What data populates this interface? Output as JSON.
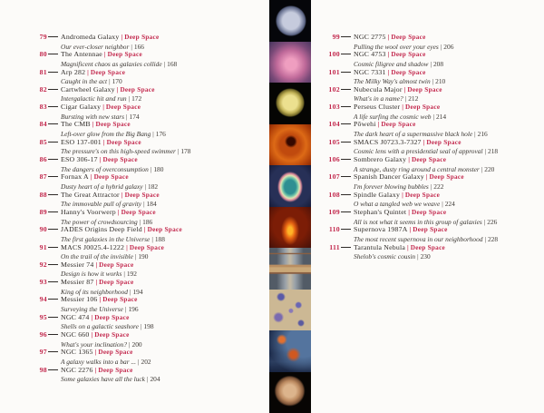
{
  "page": {
    "background": "#fcfbf9",
    "accent_red": "#c2274c",
    "ink": "#2e2a27"
  },
  "toc": {
    "separator": "|",
    "left": [
      {
        "num": "79",
        "title": "Andromeda Galaxy",
        "tag": "Deep Space",
        "subtitle": "Our ever-closer neighbor",
        "page": "166"
      },
      {
        "num": "80",
        "title": "The Antennae",
        "tag": "Deep Space",
        "subtitle": "Magnificent chaos as galaxies collide",
        "page": "168"
      },
      {
        "num": "81",
        "title": "Arp 282",
        "tag": "Deep Space",
        "subtitle": "Caught in the act",
        "page": "170"
      },
      {
        "num": "82",
        "title": "Cartwheel Galaxy",
        "tag": "Deep Space",
        "subtitle": "Intergalactic hit and run",
        "page": "172"
      },
      {
        "num": "83",
        "title": "Cigar Galaxy",
        "tag": "Deep Space",
        "subtitle": "Bursting with new stars",
        "page": "174"
      },
      {
        "num": "84",
        "title": "The CMB",
        "tag": "Deep Space",
        "subtitle": "Left-over glow from the Big Bang",
        "page": "176"
      },
      {
        "num": "85",
        "title": "ESO 137-001",
        "tag": "Deep Space",
        "subtitle": "The pressure's on this high-speed swimmer",
        "page": "178"
      },
      {
        "num": "86",
        "title": "ESO 306-17",
        "tag": "Deep Space",
        "subtitle": "The dangers of overconsumption",
        "page": "180"
      },
      {
        "num": "87",
        "title": "Fornax A",
        "tag": "Deep Space",
        "subtitle": "Dusty heart of a hybrid galaxy",
        "page": "182"
      },
      {
        "num": "88",
        "title": "The Great Attractor",
        "tag": "Deep Space",
        "subtitle": "The immovable pull of gravity",
        "page": "184"
      },
      {
        "num": "89",
        "title": "Hanny's Voorwerp",
        "tag": "Deep Space",
        "subtitle": "The power of crowdsourcing",
        "page": "186"
      },
      {
        "num": "90",
        "title": "JADES Origins Deep Field",
        "tag": "Deep Space",
        "subtitle": "The first galaxies in the Universe",
        "page": "188"
      },
      {
        "num": "91",
        "title": "MACS J0025.4-1222",
        "tag": "Deep Space",
        "subtitle": "On the trail of the invisible",
        "page": "190"
      },
      {
        "num": "92",
        "title": "Messier 74",
        "tag": "Deep Space",
        "subtitle": "Design is how it works",
        "page": "192"
      },
      {
        "num": "93",
        "title": "Messier 87",
        "tag": "Deep Space",
        "subtitle": "King of its neighborhood",
        "page": "194"
      },
      {
        "num": "94",
        "title": "Messier 106",
        "tag": "Deep Space",
        "subtitle": "Surveying the Universe",
        "page": "196"
      },
      {
        "num": "95",
        "title": "NGC 474",
        "tag": "Deep Space",
        "subtitle": "Shells on a galactic seashore",
        "page": "198"
      },
      {
        "num": "96",
        "title": "NGC 660",
        "tag": "Deep Space",
        "subtitle": "What's your inclination?",
        "page": "200"
      },
      {
        "num": "97",
        "title": "NGC 1365",
        "tag": "Deep Space",
        "subtitle": "A galaxy walks into a bar ...",
        "page": "202"
      },
      {
        "num": "98",
        "title": "NGC 2276",
        "tag": "Deep Space",
        "subtitle": "Some galaxies have all the luck",
        "page": "204"
      }
    ],
    "right": [
      {
        "num": "99",
        "title": "NGC 2775",
        "tag": "Deep Space",
        "subtitle": "Pulling the wool over your eyes",
        "page": "206"
      },
      {
        "num": "100",
        "title": "NGC 4753",
        "tag": "Deep Space",
        "subtitle": "Cosmic filigree and shadow",
        "page": "208"
      },
      {
        "num": "101",
        "title": "NGC 7331",
        "tag": "Deep Space",
        "subtitle": "The Milky Way's almost twin",
        "page": "210"
      },
      {
        "num": "102",
        "title": "Nubecula Major",
        "tag": "Deep Space",
        "subtitle": "What's in a name?",
        "page": "212"
      },
      {
        "num": "103",
        "title": "Perseus Cluster",
        "tag": "Deep Space",
        "subtitle": "A life surfing the cosmic web",
        "page": "214"
      },
      {
        "num": "104",
        "title": "Pōwehi",
        "tag": "Deep Space",
        "subtitle": "The dark heart of a supermassive black hole",
        "page": "216"
      },
      {
        "num": "105",
        "title": "SMACS J0723.3-7327",
        "tag": "Deep Space",
        "subtitle": "Cosmic lens with a presidential seal of approval",
        "page": "218"
      },
      {
        "num": "106",
        "title": "Sombrero Galaxy",
        "tag": "Deep Space",
        "subtitle": "A strange, dusty ring around a central monster",
        "page": "220"
      },
      {
        "num": "107",
        "title": "Spanish Dancer Galaxy",
        "tag": "Deep Space",
        "subtitle": "I'm forever blowing bubbles",
        "page": "222"
      },
      {
        "num": "108",
        "title": "Spindle Galaxy",
        "tag": "Deep Space",
        "subtitle": "O what a tangled web we weave",
        "page": "224"
      },
      {
        "num": "109",
        "title": "Stephan's Quintet",
        "tag": "Deep Space",
        "subtitle": "All is not what it seems in this group of galaxies",
        "page": "226"
      },
      {
        "num": "110",
        "title": "Supernova 1987A",
        "tag": "Deep Space",
        "subtitle": "The most recent supernova in our neighborhood",
        "page": "228"
      },
      {
        "num": "111",
        "title": "Tarantula Nebula",
        "tag": "Deep Space",
        "subtitle": "Shelob's cosmic cousin",
        "page": "230"
      }
    ]
  },
  "strip": {
    "images": [
      {
        "name": "photo-moon-grey-sphere"
      },
      {
        "name": "photo-pink-nebula"
      },
      {
        "name": "photo-titan-yellow-sphere"
      },
      {
        "name": "photo-orange-filament-web"
      },
      {
        "name": "photo-teal-ring-nebula"
      },
      {
        "name": "photo-fiery-orange-nebula"
      },
      {
        "name": "photo-edge-on-galaxy"
      },
      {
        "name": "photo-deep-field-tan-blue"
      },
      {
        "name": "photo-blue-orange-nebula"
      },
      {
        "name": "photo-venus-tan-sphere"
      }
    ]
  }
}
